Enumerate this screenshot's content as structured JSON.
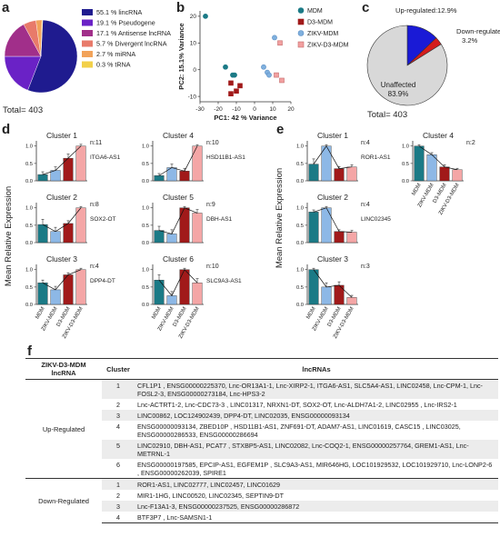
{
  "panel_labels": {
    "a": "a",
    "b": "b",
    "c": "c",
    "d": "d",
    "e": "e",
    "f": "f"
  },
  "panel_a": {
    "chart_data": {
      "type": "pie",
      "categories": [
        "lincRNA",
        "Pseudogene",
        "Antisense lncRNA",
        "Divergent lncRNA",
        "miRNA",
        "tRNA"
      ],
      "values": [
        55.1,
        19.1,
        17.1,
        5.7,
        2.7,
        0.3
      ],
      "legend_labels": [
        "55.1 % lincRNA",
        "19.1 % Pseudogene",
        "17.1 % Antisense lncRNA",
        "5.7 % Divergent lncRNA",
        "2.7 % miRNA",
        "0.3 % tRNA"
      ],
      "colors": [
        "#1f1b8f",
        "#6a22c6",
        "#a12f8a",
        "#e87a6a",
        "#f2a35a",
        "#f2d04a"
      ]
    },
    "total": "Total= 403"
  },
  "panel_b": {
    "chart_data": {
      "type": "scatter",
      "xlabel": "PC1: 42 % Variance",
      "ylabel": "PC2: 15.1% Variance",
      "xlim": [
        -30,
        20
      ],
      "ylim": [
        -12,
        22
      ],
      "xticks": [
        -30,
        -20,
        -10,
        0,
        10,
        20
      ],
      "yticks": [
        -10,
        0,
        10,
        20
      ],
      "series": [
        {
          "name": "MDM",
          "color": "#1b7a86",
          "marker": "circle",
          "filled": true,
          "points": [
            [
              -27,
              20
            ],
            [
              -16,
              1
            ],
            [
              -12,
              -2
            ],
            [
              -11,
              -2
            ]
          ]
        },
        {
          "name": "D3-MDM",
          "color": "#a11a1a",
          "marker": "square",
          "filled": true,
          "points": [
            [
              -13,
              -5
            ],
            [
              -10,
              -8
            ],
            [
              -8,
              -6
            ],
            [
              -13,
              -9
            ]
          ]
        },
        {
          "name": "ZIKV-MDM",
          "color": "#7fb0de",
          "marker": "circle",
          "filled": false,
          "points": [
            [
              5,
              1
            ],
            [
              7,
              -1
            ],
            [
              11,
              12
            ],
            [
              8,
              -2
            ]
          ]
        },
        {
          "name": "ZIKV-D3-MDM",
          "color": "#f2a0a0",
          "marker": "square",
          "filled": false,
          "points": [
            [
              14,
              10
            ],
            [
              12,
              -2
            ],
            [
              15,
              -4
            ]
          ]
        }
      ]
    }
  },
  "panel_c": {
    "chart_data": {
      "type": "pie",
      "categories": [
        "Up-regulated",
        "Down-regulated",
        "Unaffected"
      ],
      "values": [
        12.9,
        3.2,
        83.9
      ],
      "colors": [
        "#1a1ad6",
        "#d41c1c",
        "#d8d8d8"
      ]
    },
    "up_label": "Up-regulated:12.9%",
    "down_label_1": "Down-regulated:",
    "down_label_2": "3.2%",
    "unaff_label_1": "Unaffected",
    "unaff_label_2": "83.9%",
    "total": "Total= 403"
  },
  "panel_d": {
    "ylabel": "Mean Relative Expression",
    "x_categories": [
      "MDM",
      "ZIKV-MDM",
      "D3-MDM",
      "ZIKV-D3-MDM"
    ],
    "yticks": [
      "0.0",
      "0.5",
      "1.0"
    ],
    "chart_data": [
      {
        "type": "bar",
        "title": "Cluster 1",
        "n": "n:11",
        "gene": "ITGA6-AS1",
        "values": [
          0.18,
          0.3,
          0.65,
          1.0
        ],
        "errors": [
          0.08,
          0.1,
          0.12,
          0.05
        ]
      },
      {
        "type": "bar",
        "title": "Cluster 2",
        "n": "n:8",
        "gene": "SOX2-OT",
        "values": [
          0.52,
          0.32,
          0.55,
          1.0
        ],
        "errors": [
          0.15,
          0.12,
          0.08,
          0.04
        ]
      },
      {
        "type": "bar",
        "title": "Cluster 3",
        "n": "n:4",
        "gene": "DPP4-DT",
        "values": [
          0.62,
          0.42,
          0.85,
          1.0
        ],
        "errors": [
          0.08,
          0.1,
          0.06,
          0.04
        ]
      },
      {
        "type": "bar",
        "title": "Cluster 4",
        "n": "n:10",
        "gene": "HSD11B1-AS1",
        "values": [
          0.15,
          0.38,
          0.28,
          1.0
        ],
        "errors": [
          0.06,
          0.1,
          0.08,
          0.04
        ]
      },
      {
        "type": "bar",
        "title": "Cluster 5",
        "n": "n:9",
        "gene": "DBH-AS1",
        "values": [
          0.35,
          0.25,
          1.0,
          0.85
        ],
        "errors": [
          0.12,
          0.12,
          0.04,
          0.1
        ]
      },
      {
        "type": "bar",
        "title": "Cluster 6",
        "n": "n:10",
        "gene": "SLC9A3-AS1",
        "values": [
          0.7,
          0.25,
          1.0,
          0.62
        ],
        "errors": [
          0.15,
          0.12,
          0.04,
          0.12
        ]
      }
    ]
  },
  "panel_e": {
    "ylabel": "Mean Relative Expression",
    "x_categories": [
      "MDM",
      "ZIKV-MDM",
      "D3-MDM",
      "ZIKV-D3-MDM"
    ],
    "yticks": [
      "0.0",
      "0.5",
      "1.0"
    ],
    "chart_data": [
      {
        "type": "bar",
        "title": "Cluster 1",
        "n": "n:4",
        "gene": "ROR1-AS1",
        "values": [
          0.48,
          1.0,
          0.35,
          0.4
        ],
        "errors": [
          0.15,
          0.04,
          0.06,
          0.06
        ]
      },
      {
        "type": "bar",
        "title": "Cluster 2",
        "n": "n:4",
        "gene": "LINC02345",
        "values": [
          0.88,
          1.0,
          0.32,
          0.3
        ],
        "errors": [
          0.06,
          0.04,
          0.05,
          0.05
        ]
      },
      {
        "type": "bar",
        "title": "Cluster 3",
        "n": "n:3",
        "gene": "",
        "values": [
          1.0,
          0.5,
          0.55,
          0.2
        ],
        "errors": [
          0.04,
          0.12,
          0.1,
          0.06
        ]
      },
      {
        "type": "bar",
        "title": "Cluster 4",
        "n": "n:2",
        "gene": "",
        "values": [
          1.0,
          0.75,
          0.4,
          0.32
        ],
        "errors": [
          0.04,
          0.06,
          0.06,
          0.04
        ]
      }
    ]
  },
  "panel_f": {
    "headers": [
      "ZIKV-D3-MDM lncRNA",
      "Cluster",
      "lncRNAs"
    ],
    "groups": [
      {
        "name": "Up-Regulated",
        "rows": [
          {
            "cluster": "1",
            "lncrnas": "CFL1P1 , ENSG00000225370, Lnc-OR13A1-1, Lnc-XIRP2-1, ITGA6-AS1, SLC5A4-AS1, LINC02458, Lnc-CPM-1, Lnc-FOSL2-3, ENSG00000273184, Lnc-HPS3-2"
          },
          {
            "cluster": "2",
            "lncrnas": "Lnc-ACTRT1-2, Lnc-CDC73-3 , LINC01317, NRXN1-DT, SOX2-OT, Lnc-ALDH7A1-2, LINC02955 , Lnc-IRS2-1"
          },
          {
            "cluster": "3",
            "lncrnas": "LINC00862, LOC124902439, DPP4-DT, LINC02035, ENSG00000093134"
          },
          {
            "cluster": "4",
            "lncrnas": "ENSG00000093134, ZBED10P , HSD11B1-AS1, ZNF691-DT, ADAM7-AS1, LINC01619, CASC15 , LINC03025, ENSG00000286533, ENSG00000286694"
          },
          {
            "cluster": "5",
            "lncrnas": "LINC02910, DBH-AS1, PCAT7 , STXBP5-AS1, LINC02082, Lnc-COQ2-1, ENSG00000257764, GREM1-AS1, Lnc-METRNL-1"
          },
          {
            "cluster": "6",
            "lncrnas": "ENSG00000197585, EPCIP-AS1, EGFEM1P , SLC9A3-AS1, MIR646HG, LOC101929532, LOC101929710, Lnc-LONP2-6 , ENSG00000262039, SPIRE1"
          }
        ]
      },
      {
        "name": "Down-Regulated",
        "rows": [
          {
            "cluster": "1",
            "lncrnas": "ROR1-AS1, LINC02777, LINC02457, LINC01629"
          },
          {
            "cluster": "2",
            "lncrnas": "MIR1-1HG, LINC00520, LINC02345, SEPTIN9-DT"
          },
          {
            "cluster": "3",
            "lncrnas": "Lnc-F13A1-3, ENSG00000237525, ENSG00000286872"
          },
          {
            "cluster": "4",
            "lncrnas": "BTF3P7 , Lnc-SAMSN1-1"
          }
        ]
      }
    ]
  },
  "bar_colors": [
    "#1b7a86",
    "#8db8e6",
    "#a11a1a",
    "#f4a6a6"
  ]
}
